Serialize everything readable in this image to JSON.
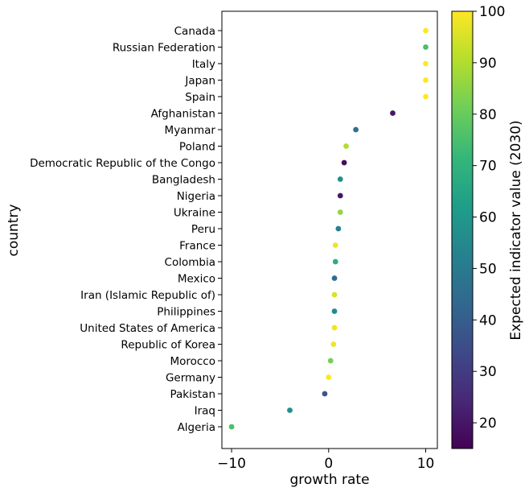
{
  "chart_data": {
    "type": "scatter",
    "xlabel": "growth rate",
    "ylabel": "country",
    "xlim": [
      -11,
      11.2
    ],
    "xticks": [
      -10,
      0,
      10
    ],
    "grid": false,
    "colorbar": {
      "label": "Expected indicator value (2030)",
      "range": [
        15,
        100
      ],
      "ticks": [
        20,
        30,
        40,
        50,
        60,
        70,
        80,
        90,
        100
      ],
      "colormap": "viridis"
    },
    "points": [
      {
        "country": "Canada",
        "x": 10,
        "c": 100
      },
      {
        "country": "Russian Federation",
        "x": 10,
        "c": 75
      },
      {
        "country": "Italy",
        "x": 10,
        "c": 100
      },
      {
        "country": "Japan",
        "x": 10,
        "c": 100
      },
      {
        "country": "Spain",
        "x": 10,
        "c": 100
      },
      {
        "country": "Afghanistan",
        "x": 6.6,
        "c": 20
      },
      {
        "country": "Myanmar",
        "x": 2.8,
        "c": 47
      },
      {
        "country": "Poland",
        "x": 1.8,
        "c": 90
      },
      {
        "country": "Democratic Republic of the Congo",
        "x": 1.6,
        "c": 18
      },
      {
        "country": "Bangladesh",
        "x": 1.2,
        "c": 57
      },
      {
        "country": "Nigeria",
        "x": 1.2,
        "c": 20
      },
      {
        "country": "Ukraine",
        "x": 1.2,
        "c": 86
      },
      {
        "country": "Peru",
        "x": 1.0,
        "c": 52
      },
      {
        "country": "France",
        "x": 0.7,
        "c": 98
      },
      {
        "country": "Colombia",
        "x": 0.7,
        "c": 68
      },
      {
        "country": "Mexico",
        "x": 0.6,
        "c": 45
      },
      {
        "country": "Iran (Islamic Republic of)",
        "x": 0.6,
        "c": 95
      },
      {
        "country": "Philippines",
        "x": 0.6,
        "c": 55
      },
      {
        "country": "United States of America",
        "x": 0.6,
        "c": 98
      },
      {
        "country": "Republic of Korea",
        "x": 0.5,
        "c": 98
      },
      {
        "country": "Morocco",
        "x": 0.2,
        "c": 82
      },
      {
        "country": "Germany",
        "x": 0.0,
        "c": 100
      },
      {
        "country": "Pakistan",
        "x": -0.4,
        "c": 38
      },
      {
        "country": "Iraq",
        "x": -4.0,
        "c": 58
      },
      {
        "country": "Algeria",
        "x": -10.0,
        "c": 75
      }
    ]
  }
}
